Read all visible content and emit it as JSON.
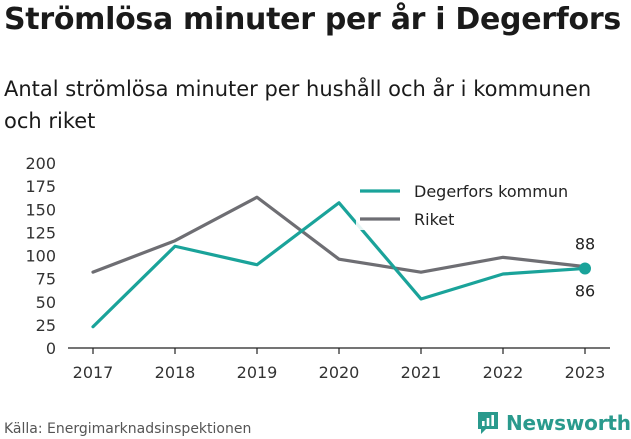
{
  "title": "Strömlösa minuter per år i Degerfors",
  "subtitle": "Antal strömlösa minuter per hushåll och år i kommunen och riket",
  "source": "Källa: Energimarknadsinspektionen",
  "brand": {
    "name": "Newsworthy",
    "icon": "bar-chart-logo-icon",
    "color": "#2a9a8d"
  },
  "chart_data": {
    "type": "line",
    "x": [
      "2017",
      "2018",
      "2019",
      "2020",
      "2021",
      "2022",
      "2023"
    ],
    "ylim": [
      0,
      200
    ],
    "yticks": [
      0,
      25,
      50,
      75,
      100,
      125,
      150,
      175,
      200
    ],
    "grid": false,
    "legend": "top-right",
    "series": [
      {
        "name": "Degerfors kommun",
        "color": "#1aa39a",
        "values": [
          23,
          110,
          90,
          157,
          53,
          80,
          86
        ],
        "end_label": "86"
      },
      {
        "name": "Riket",
        "color": "#6e6e73",
        "values": [
          82,
          116,
          163,
          96,
          82,
          98,
          88
        ],
        "end_label": "88"
      }
    ]
  }
}
